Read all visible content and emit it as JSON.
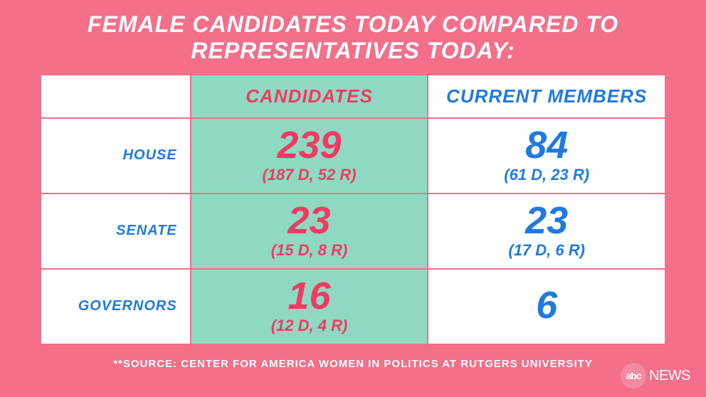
{
  "colors": {
    "background": "#f36f8a",
    "candidates_col_bg": "#8fd9c2",
    "candidates_text": "#ef3a63",
    "members_text": "#1f7ae0",
    "row_label_text": "#1f7ae0",
    "white": "#ffffff",
    "border": "#f36f8a"
  },
  "typography": {
    "title_fontsize": 32,
    "header_fontsize": 26,
    "row_label_fontsize": 20,
    "big_number_fontsize": 54,
    "sub_detail_fontsize": 22,
    "footnote_fontsize": 15
  },
  "title": "FEMALE CANDIDATES TODAY COMPARED TO REPRESENTATIVES TODAY:",
  "table": {
    "type": "table",
    "columns": [
      {
        "key": "label",
        "header": ""
      },
      {
        "key": "candidates",
        "header": "CANDIDATES",
        "bg": "#8fd9c2",
        "text_color": "#ef3a63"
      },
      {
        "key": "members",
        "header": "CURRENT MEMBERS",
        "bg": "#ffffff",
        "text_color": "#1f7ae0"
      }
    ],
    "rows": [
      {
        "label": "HOUSE",
        "candidates": {
          "value": "239",
          "detail": "(187 D, 52 R)"
        },
        "members": {
          "value": "84",
          "detail": "(61 D, 23 R)"
        }
      },
      {
        "label": "SENATE",
        "candidates": {
          "value": "23",
          "detail": "(15 D, 8 R)"
        },
        "members": {
          "value": "23",
          "detail": "(17 D, 6 R)"
        }
      },
      {
        "label": "GOVERNORS",
        "candidates": {
          "value": "16",
          "detail": "(12 D, 4 R)"
        },
        "members": {
          "value": "6",
          "detail": ""
        }
      }
    ]
  },
  "footnote": "**SOURCE: CENTER FOR AMERICA WOMEN IN POLITICS AT RUTGERS UNIVERSITY",
  "logo": {
    "abc": "abc",
    "news": "NEWS"
  }
}
